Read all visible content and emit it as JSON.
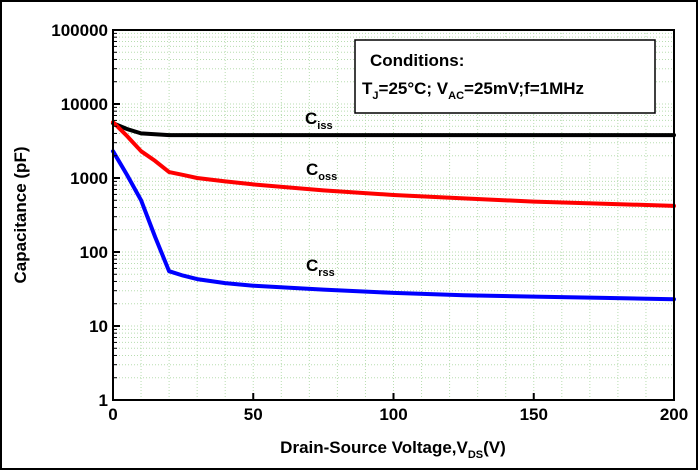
{
  "chart_data": {
    "type": "line",
    "xlabel": "Drain-Source Voltage,V",
    "xlabel_sub": "DS",
    "xlabel_unit": "(V)",
    "ylabel": "Capacitance (pF)",
    "xlim": [
      0,
      200
    ],
    "ylim": [
      1,
      100000
    ],
    "yscale": "log",
    "x_ticks": [
      "0",
      "50",
      "100",
      "150",
      "200"
    ],
    "y_ticks": [
      "1",
      "10",
      "100",
      "1000",
      "10000",
      "100000"
    ],
    "grid": true,
    "conditions": {
      "title": "Conditions:",
      "t": "T",
      "t_sub": "J",
      "t_rest": "=25°C; V",
      "v_sub": "AC",
      "v_rest": "=25mV;f=1MHz"
    },
    "series": [
      {
        "name": "C",
        "name_sub": "iss",
        "color": "#000000",
        "x": [
          0,
          5,
          10,
          15,
          20,
          30,
          40,
          50,
          75,
          100,
          125,
          150,
          175,
          200
        ],
        "y": [
          5500,
          4600,
          4000,
          3900,
          3800,
          3800,
          3800,
          3800,
          3800,
          3800,
          3800,
          3800,
          3800,
          3800
        ]
      },
      {
        "name": "C",
        "name_sub": "oss",
        "color": "#ff0000",
        "x": [
          0,
          5,
          10,
          15,
          20,
          25,
          30,
          40,
          50,
          75,
          100,
          125,
          150,
          175,
          200
        ],
        "y": [
          5700,
          3700,
          2300,
          1700,
          1200,
          1100,
          1000,
          900,
          820,
          680,
          590,
          530,
          480,
          450,
          420
        ]
      },
      {
        "name": "C",
        "name_sub": "rss",
        "color": "#0000ff",
        "x": [
          0,
          5,
          10,
          15,
          20,
          25,
          30,
          40,
          50,
          75,
          100,
          125,
          150,
          175,
          200
        ],
        "y": [
          2300,
          1100,
          500,
          160,
          55,
          48,
          43,
          38,
          35,
          31,
          28,
          26,
          25,
          24,
          23
        ]
      }
    ]
  }
}
